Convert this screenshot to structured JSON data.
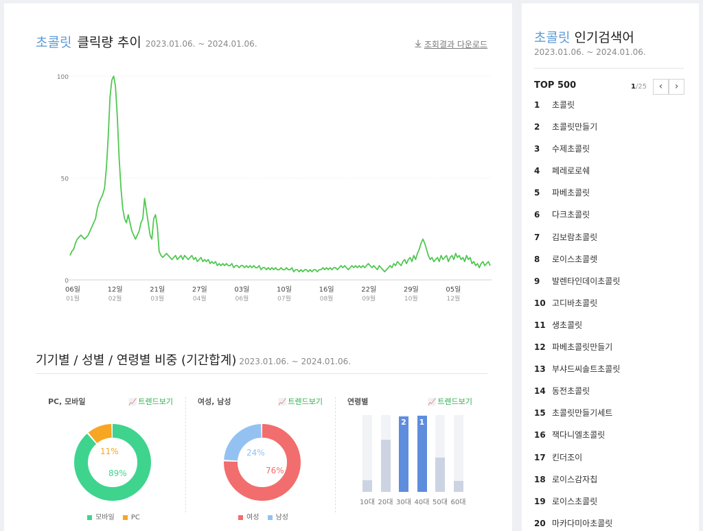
{
  "trend": {
    "keyword": "초콜릿",
    "title": "클릭량 추이",
    "date_range": "2023.01.06. ~ 2024.01.06.",
    "download_label": "조회결과 다운로드",
    "download_icon": "download-icon"
  },
  "chart_data": [
    {
      "type": "line",
      "ylim": [
        0,
        100
      ],
      "y_ticks": [
        "0",
        "50",
        "100"
      ],
      "x_ticks": [
        {
          "day": "06일",
          "month": "01월"
        },
        {
          "day": "12일",
          "month": "02월"
        },
        {
          "day": "21일",
          "month": "03월"
        },
        {
          "day": "27일",
          "month": "04월"
        },
        {
          "day": "03일",
          "month": "06월"
        },
        {
          "day": "10일",
          "month": "07월"
        },
        {
          "day": "16일",
          "month": "08월"
        },
        {
          "day": "22일",
          "month": "09월"
        },
        {
          "day": "29일",
          "month": "10월"
        },
        {
          "day": "05일",
          "month": "12월"
        }
      ],
      "line_color": "#4fc850",
      "series": [
        {
          "values": [
            12,
            14,
            15,
            18,
            20,
            21,
            22,
            21,
            20,
            21,
            22,
            24,
            26,
            28,
            30,
            35,
            38,
            40,
            42,
            45,
            55,
            70,
            90,
            98,
            100,
            95,
            80,
            60,
            45,
            35,
            30,
            28,
            32,
            28,
            24,
            22,
            20,
            22,
            24,
            28,
            30,
            40,
            34,
            28,
            22,
            20,
            30,
            32,
            26,
            14,
            12,
            11,
            12,
            13,
            12,
            11,
            10,
            11,
            12,
            10,
            11,
            12,
            10,
            12,
            11,
            10,
            11,
            12,
            10,
            11,
            9,
            10,
            11,
            9,
            10,
            9,
            10,
            8,
            9,
            8,
            9,
            7,
            8,
            7,
            8,
            7,
            8,
            7,
            7,
            8,
            6,
            7,
            7,
            6,
            7,
            7,
            6,
            7,
            6,
            7,
            6,
            7,
            6,
            6,
            7,
            5,
            6,
            6,
            5,
            6,
            5,
            6,
            5,
            6,
            5,
            5,
            6,
            5,
            5,
            6,
            5,
            5,
            6,
            4,
            5,
            5,
            4,
            5,
            4,
            5,
            5,
            4,
            5,
            4,
            5,
            5,
            4,
            5,
            5,
            6,
            5,
            6,
            5,
            6,
            5,
            6,
            6,
            5,
            6,
            7,
            6,
            7,
            6,
            5,
            6,
            7,
            6,
            7,
            6,
            7,
            6,
            7,
            6,
            7,
            8,
            7,
            6,
            7,
            6,
            5,
            7,
            6,
            5,
            4,
            5,
            6,
            7,
            6,
            8,
            7,
            9,
            8,
            7,
            9,
            10,
            8,
            10,
            11,
            9,
            12,
            10,
            13,
            15,
            18,
            20,
            18,
            15,
            12,
            10,
            11,
            9,
            10,
            11,
            9,
            12,
            10,
            11,
            12,
            9,
            11,
            12,
            10,
            13,
            11,
            12,
            10,
            11,
            9,
            12,
            10,
            11,
            8,
            9,
            7,
            8,
            6,
            8,
            9,
            7,
            8,
            9,
            7
          ]
        }
      ]
    },
    {
      "type": "pie",
      "label": "PC, 모바일",
      "trend_link": "트렌드보기",
      "slices": [
        {
          "name": "모바일",
          "value": 89,
          "display": "89%",
          "color": "#3ed48e"
        },
        {
          "name": "PC",
          "value": 11,
          "display": "11%",
          "color": "#f6a623"
        }
      ]
    },
    {
      "type": "pie",
      "label": "여성, 남성",
      "trend_link": "트렌드보기",
      "slices": [
        {
          "name": "여성",
          "value": 76,
          "display": "76%",
          "color": "#f26d6d"
        },
        {
          "name": "남성",
          "value": 24,
          "display": "24%",
          "color": "#93c2f2"
        }
      ]
    },
    {
      "type": "bar",
      "label": "연령별",
      "trend_link": "트렌드보기",
      "categories": [
        "10대",
        "20대",
        "30대",
        "40대",
        "50대",
        "60대"
      ],
      "values": [
        15,
        68,
        98,
        99,
        45,
        14
      ],
      "ranks": [
        "",
        "",
        "2",
        "1",
        "",
        ""
      ],
      "colors": [
        "#ccd3e3",
        "#ccd3e3",
        "#5f8ddd",
        "#5f8ddd",
        "#ccd3e3",
        "#ccd3e3"
      ]
    }
  ],
  "sec2": {
    "title": "기기별 / 성별 / 연령별 비중 (기간합계)",
    "date_range": "2023.01.06. ~ 2024.01.06.",
    "trend_icon": "trend-chart-icon"
  },
  "side": {
    "keyword": "초콜릿",
    "title": "인기검색어",
    "date_range": "2023.01.06. ~ 2024.01.06.",
    "top_label": "TOP 500",
    "page_current": "1",
    "page_total": "/25",
    "prev_icon": "chevron-left-icon",
    "next_icon": "chevron-right-icon",
    "items": [
      {
        "rank": "1",
        "term": "초콜릿"
      },
      {
        "rank": "2",
        "term": "초콜릿만들기"
      },
      {
        "rank": "3",
        "term": "수제초콜릿"
      },
      {
        "rank": "4",
        "term": "페레로로쉐"
      },
      {
        "rank": "5",
        "term": "파베초콜릿"
      },
      {
        "rank": "6",
        "term": "다크초콜릿"
      },
      {
        "rank": "7",
        "term": "김보람초콜릿"
      },
      {
        "rank": "8",
        "term": "로이스초콜렛"
      },
      {
        "rank": "9",
        "term": "발렌타인데이초콜릿"
      },
      {
        "rank": "10",
        "term": "고디바초콜릿"
      },
      {
        "rank": "11",
        "term": "생초콜릿"
      },
      {
        "rank": "12",
        "term": "파베초콜릿만들기"
      },
      {
        "rank": "13",
        "term": "부샤드씨솔트초콜릿"
      },
      {
        "rank": "14",
        "term": "동전초콜릿"
      },
      {
        "rank": "15",
        "term": "초콜릿만들기세트"
      },
      {
        "rank": "16",
        "term": "잭다니엘초콜릿"
      },
      {
        "rank": "17",
        "term": "킨더조이"
      },
      {
        "rank": "18",
        "term": "로이스감자칩"
      },
      {
        "rank": "19",
        "term": "로이스초콜릿"
      },
      {
        "rank": "20",
        "term": "마카다미아초콜릿"
      }
    ]
  }
}
